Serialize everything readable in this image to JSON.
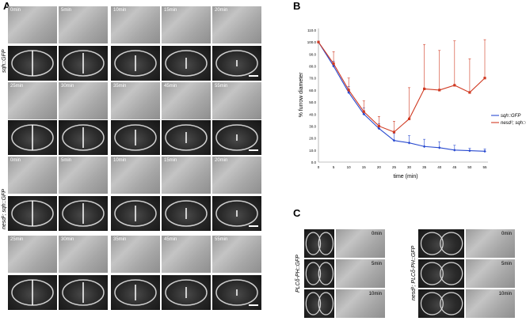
{
  "panels": {
    "a": {
      "letter": "A",
      "wt_label": "sqh::GFP",
      "mut_label": "nesd¹; sqh::GFP",
      "row1_times": [
        "0min",
        "5min",
        "10min",
        "15min",
        "20min"
      ],
      "row2_times": [
        "25min",
        "30min",
        "35min",
        "45min",
        "55min"
      ]
    },
    "b": {
      "letter": "B"
    },
    "c": {
      "letter": "C",
      "left_label": "PLCδ-PH::GFP",
      "right_label": "nesd¹; PLCδ-PH::GFP",
      "times": [
        "0min",
        "5min",
        "10min"
      ]
    }
  },
  "chart_data": {
    "type": "line",
    "ylabel": "% furrow diameter",
    "xlabel": "time (min)",
    "x": [
      0,
      5,
      10,
      15,
      20,
      25,
      30,
      35,
      40,
      45,
      50,
      55
    ],
    "xlim": [
      0,
      55
    ],
    "ylim": [
      0,
      110
    ],
    "yticks": [
      "0.0",
      "10.0",
      "20.0",
      "30.0",
      "40.0",
      "50.0",
      "60.0",
      "70.0",
      "80.0",
      "90.0",
      "100.0",
      "110.0"
    ],
    "xticks": [
      "0",
      "5",
      "10",
      "15",
      "20",
      "25",
      "30",
      "35",
      "40",
      "45",
      "50",
      "55"
    ],
    "series": [
      {
        "name": "sqh::GFP",
        "color": "#2a4bd0",
        "values": [
          100,
          80,
          58,
          40,
          28,
          18,
          16,
          13,
          12,
          10,
          9.5,
          9
        ],
        "err": [
          0,
          4,
          5,
          5,
          4,
          6,
          6,
          6,
          5,
          4,
          2,
          2
        ]
      },
      {
        "name": "nesd¹; sqh::GFP",
        "color": "#d03a22",
        "values": [
          100,
          82,
          60,
          42,
          30,
          25,
          36,
          61,
          60,
          64,
          58,
          70
        ],
        "err": [
          0,
          10,
          10,
          9,
          8,
          9,
          26,
          37,
          33,
          37,
          28,
          32
        ]
      }
    ]
  }
}
